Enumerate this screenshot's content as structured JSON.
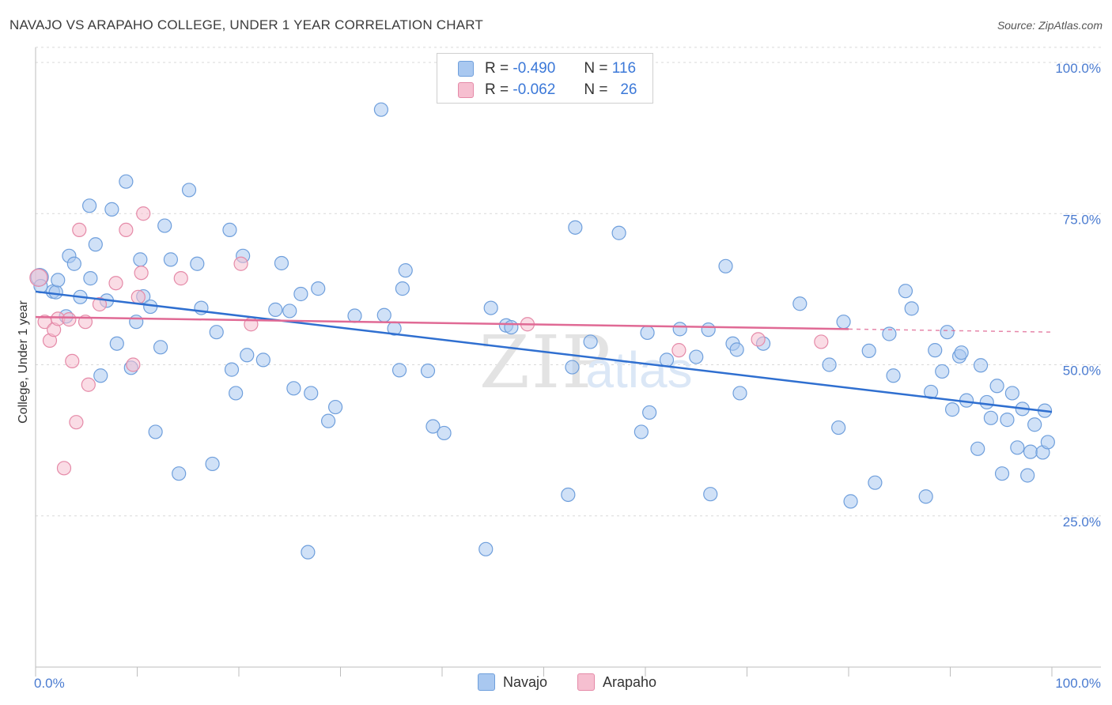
{
  "header": {
    "title": "NAVAJO VS ARAPAHO COLLEGE, UNDER 1 YEAR CORRELATION CHART",
    "source": "Source: ZipAtlas.com"
  },
  "legend": {
    "rows": [
      {
        "r_label": "R =",
        "r_value": "-0.490",
        "n_label": "N =",
        "n_value": "116"
      },
      {
        "r_label": "R =",
        "r_value": "-0.062",
        "n_label": "N =",
        "n_value": "26"
      }
    ]
  },
  "bottom_legend": {
    "navajo": "Navajo",
    "arapaho": "Arapaho"
  },
  "colors": {
    "navajo_fill": "#a9c8f0",
    "navajo_stroke": "#6f9fdc",
    "navajo_line": "#2f6fd0",
    "arapaho_fill": "#f6bfd0",
    "arapaho_stroke": "#e58aa8",
    "arapaho_line": "#e06a95",
    "grid": "#d9d9d9",
    "tick_text": "#4a7bd0"
  },
  "chart_data": {
    "type": "scatter",
    "title": "NAVAJO VS ARAPAHO COLLEGE, UNDER 1 YEAR CORRELATION CHART",
    "xlabel": "",
    "ylabel": "College, Under 1 year",
    "x_tick_labels": [
      "0.0%",
      "100.0%"
    ],
    "y_tick_labels": [
      "100.0%",
      "75.0%",
      "50.0%",
      "25.0%"
    ],
    "y_ticks": [
      100,
      75,
      50,
      25
    ],
    "xlim": [
      0,
      100
    ],
    "ylim": [
      0,
      102.5
    ],
    "grid": "horizontal dashed",
    "legend_position": "top-center",
    "watermark": "ZIPatlas",
    "series": [
      {
        "name": "Navajo",
        "r": -0.49,
        "n": 116,
        "trend": {
          "x": [
            0,
            100
          ],
          "y": [
            62.1,
            42.2
          ]
        },
        "points": [
          [
            0.4,
            64.5
          ],
          [
            1.7,
            62.1
          ],
          [
            2.0,
            62.0
          ],
          [
            3.0,
            58.0
          ],
          [
            2.2,
            64.0
          ],
          [
            3.3,
            68.0
          ],
          [
            3.8,
            66.7
          ],
          [
            4.4,
            61.2
          ],
          [
            5.3,
            76.3
          ],
          [
            5.4,
            64.3
          ],
          [
            5.9,
            69.9
          ],
          [
            6.4,
            48.2
          ],
          [
            7.0,
            60.6
          ],
          [
            7.5,
            75.7
          ],
          [
            8.0,
            53.5
          ],
          [
            8.9,
            80.3
          ],
          [
            9.4,
            49.5
          ],
          [
            9.9,
            57.1
          ],
          [
            10.3,
            67.4
          ],
          [
            10.6,
            61.3
          ],
          [
            11.3,
            59.6
          ],
          [
            11.8,
            38.9
          ],
          [
            12.3,
            52.9
          ],
          [
            12.7,
            73.0
          ],
          [
            13.3,
            67.4
          ],
          [
            14.1,
            32.0
          ],
          [
            15.1,
            78.9
          ],
          [
            15.9,
            66.7
          ],
          [
            16.3,
            59.4
          ],
          [
            17.4,
            33.6
          ],
          [
            17.8,
            55.4
          ],
          [
            19.1,
            72.3
          ],
          [
            19.3,
            49.2
          ],
          [
            19.7,
            45.3
          ],
          [
            20.4,
            68.0
          ],
          [
            20.8,
            51.6
          ],
          [
            22.4,
            50.8
          ],
          [
            23.6,
            59.1
          ],
          [
            24.2,
            66.8
          ],
          [
            25.0,
            58.9
          ],
          [
            25.4,
            46.1
          ],
          [
            26.1,
            61.7
          ],
          [
            26.8,
            19.0
          ],
          [
            27.1,
            45.3
          ],
          [
            27.8,
            62.6
          ],
          [
            28.8,
            40.7
          ],
          [
            29.5,
            43.0
          ],
          [
            31.4,
            58.1
          ],
          [
            34.0,
            92.2
          ],
          [
            34.3,
            58.2
          ],
          [
            35.3,
            56.0
          ],
          [
            35.8,
            49.1
          ],
          [
            36.1,
            62.6
          ],
          [
            36.4,
            65.6
          ],
          [
            38.6,
            49.0
          ],
          [
            39.1,
            39.8
          ],
          [
            40.2,
            38.7
          ],
          [
            44.3,
            19.5
          ],
          [
            44.8,
            59.4
          ],
          [
            46.3,
            56.5
          ],
          [
            46.8,
            56.2
          ],
          [
            52.4,
            28.5
          ],
          [
            52.8,
            49.6
          ],
          [
            53.1,
            72.7
          ],
          [
            54.6,
            53.8
          ],
          [
            57.4,
            71.8
          ],
          [
            59.6,
            38.9
          ],
          [
            60.2,
            55.3
          ],
          [
            60.4,
            42.1
          ],
          [
            62.1,
            50.8
          ],
          [
            63.4,
            55.9
          ],
          [
            65.0,
            51.3
          ],
          [
            66.2,
            55.8
          ],
          [
            66.4,
            28.6
          ],
          [
            67.9,
            66.3
          ],
          [
            68.6,
            53.5
          ],
          [
            69.0,
            52.5
          ],
          [
            69.3,
            45.3
          ],
          [
            71.6,
            53.5
          ],
          [
            75.2,
            60.1
          ],
          [
            78.1,
            50.0
          ],
          [
            79.0,
            39.6
          ],
          [
            79.5,
            57.1
          ],
          [
            80.2,
            27.4
          ],
          [
            82.0,
            52.3
          ],
          [
            82.6,
            30.5
          ],
          [
            84.0,
            55.1
          ],
          [
            84.4,
            48.2
          ],
          [
            85.6,
            62.2
          ],
          [
            86.2,
            59.3
          ],
          [
            87.6,
            28.2
          ],
          [
            88.1,
            45.5
          ],
          [
            88.5,
            52.4
          ],
          [
            89.2,
            48.9
          ],
          [
            89.7,
            55.4
          ],
          [
            90.2,
            42.6
          ],
          [
            90.9,
            51.4
          ],
          [
            91.1,
            52.0
          ],
          [
            91.6,
            44.1
          ],
          [
            92.7,
            36.1
          ],
          [
            93.0,
            49.9
          ],
          [
            93.6,
            43.8
          ],
          [
            94.0,
            41.2
          ],
          [
            94.6,
            46.5
          ],
          [
            95.1,
            32.0
          ],
          [
            95.6,
            40.9
          ],
          [
            96.1,
            45.3
          ],
          [
            96.6,
            36.3
          ],
          [
            97.1,
            42.7
          ],
          [
            97.6,
            31.7
          ],
          [
            97.9,
            35.6
          ],
          [
            98.3,
            40.1
          ],
          [
            99.1,
            35.5
          ],
          [
            99.6,
            37.2
          ],
          [
            99.3,
            42.4
          ],
          [
            0.5,
            63.0
          ]
        ]
      },
      {
        "name": "Arapaho",
        "r": -0.062,
        "n": 26,
        "trend": {
          "x": [
            0,
            80
          ],
          "y": [
            57.9,
            55.9
          ],
          "dashed_to": [
            100,
            55.4
          ]
        },
        "points": [
          [
            0.3,
            64.4
          ],
          [
            0.9,
            57.1
          ],
          [
            1.4,
            54.0
          ],
          [
            1.8,
            55.8
          ],
          [
            2.2,
            57.6
          ],
          [
            2.8,
            32.9
          ],
          [
            3.3,
            57.5
          ],
          [
            3.6,
            50.6
          ],
          [
            4.0,
            40.5
          ],
          [
            4.3,
            72.3
          ],
          [
            4.9,
            57.1
          ],
          [
            5.2,
            46.7
          ],
          [
            6.3,
            60.0
          ],
          [
            7.9,
            63.5
          ],
          [
            8.9,
            72.3
          ],
          [
            9.6,
            50.0
          ],
          [
            10.1,
            61.2
          ],
          [
            10.4,
            65.2
          ],
          [
            10.6,
            75.0
          ],
          [
            14.3,
            64.3
          ],
          [
            20.2,
            66.7
          ],
          [
            21.2,
            56.7
          ],
          [
            48.4,
            56.7
          ],
          [
            63.3,
            52.4
          ],
          [
            71.1,
            54.2
          ],
          [
            77.3,
            53.8
          ]
        ]
      }
    ]
  }
}
